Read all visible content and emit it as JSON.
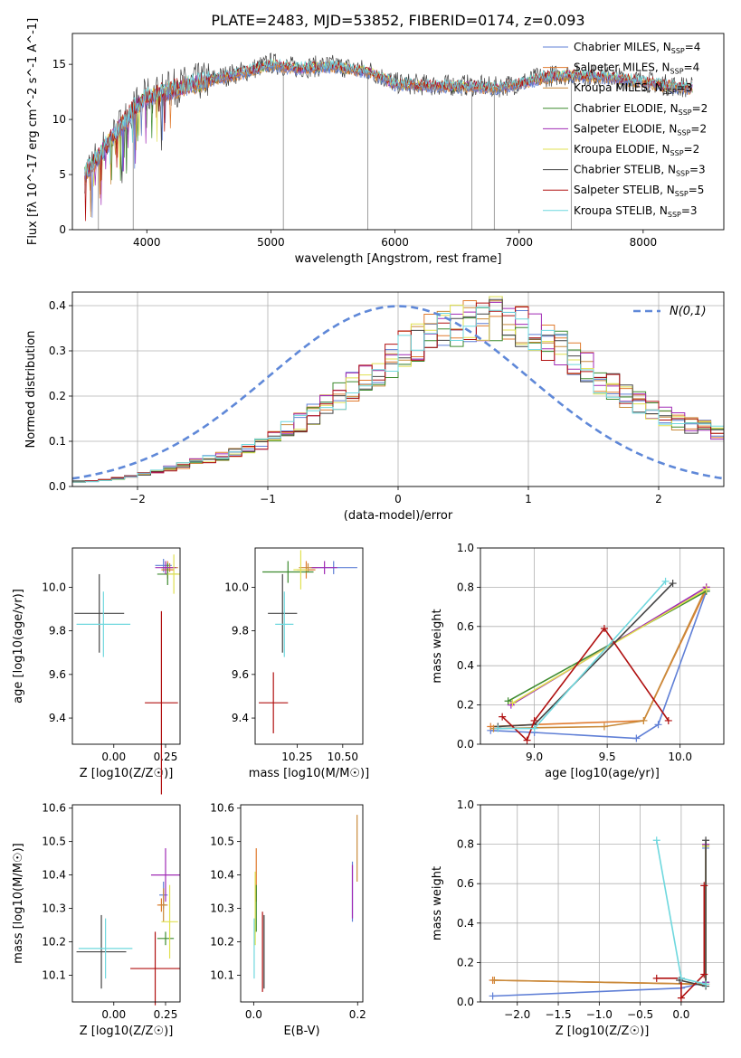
{
  "title": "PLATE=2483, MJD=53852, FIBERID=0174, z=0.093",
  "legend_labels": [
    "Chabrier MILES, N_SSP=4",
    "Salpeter MILES, N_SSP=4",
    "Kroupa MILES, N_SSP=3",
    "Chabrier ELODIE, N_SSP=2",
    "Salpeter ELODIE, N_SSP=2",
    "Kroupa ELODIE, N_SSP=2",
    "Chabrier STELIB, N_SSP=3",
    "Salpeter STELIB, N_SSP=5",
    "Kroupa STELIB, N_SSP=3"
  ],
  "series_colors": [
    "#5f7fd6",
    "#e07b2f",
    "#c98a3a",
    "#3d8b2f",
    "#a02ab5",
    "#e0e050",
    "#444444",
    "#b01010",
    "#6fd8de"
  ],
  "chart_data": [
    {
      "type": "line",
      "name": "spectrum",
      "xlabel": "wavelength [Angstrom, rest frame]",
      "ylabel": "Flux [fλ 10^-17 erg cm^-2 s^-1 A^-1]",
      "xlim": [
        3400,
        8650
      ],
      "ylim": [
        0,
        17.8
      ],
      "xticks": [
        4000,
        5000,
        6000,
        7000,
        8000
      ],
      "yticks": [
        0,
        5,
        10,
        15
      ],
      "grid": false,
      "legend": "top-right",
      "continuum": {
        "x": [
          3500,
          3700,
          3900,
          4000,
          4300,
          4500,
          4800,
          5000,
          5200,
          5500,
          5800,
          6000,
          6300,
          6600,
          6800,
          7000,
          7200,
          7400,
          7700,
          8000,
          8200,
          8400
        ],
        "y": [
          5,
          8,
          11,
          12,
          13,
          13.5,
          14.3,
          15,
          14.6,
          14.8,
          14.3,
          13.2,
          13,
          13,
          12.8,
          13.2,
          13.8,
          14,
          13.8,
          13.4,
          13,
          12.8
        ]
      }
    },
    {
      "type": "line",
      "name": "residual-distribution",
      "xlabel": "(data-model)/error",
      "ylabel": "Normed distribution",
      "xlim": [
        -2.5,
        2.5
      ],
      "ylim": [
        0,
        0.43
      ],
      "xticks": [
        -2,
        -1,
        0,
        1,
        2
      ],
      "yticks": [
        0,
        0.1,
        0.2,
        0.3,
        0.4
      ],
      "grid": true,
      "legend": "top-right",
      "reference_label": "N(0,1)",
      "reference_curve": "gaussian mean 0 sigma 1",
      "histogram_envelope": {
        "x": [
          -2.5,
          -2.2,
          -1.9,
          -1.6,
          -1.3,
          -1.0,
          -0.7,
          -0.4,
          -0.1,
          0.2,
          0.5,
          0.8,
          1.1,
          1.4,
          1.7,
          2.0,
          2.3,
          2.5
        ],
        "y": [
          0.01,
          0.015,
          0.03,
          0.05,
          0.07,
          0.1,
          0.15,
          0.21,
          0.27,
          0.33,
          0.36,
          0.37,
          0.33,
          0.27,
          0.21,
          0.16,
          0.13,
          0.12
        ]
      }
    },
    {
      "type": "scatter",
      "name": "age-vs-Z",
      "xlabel": "Z [log10(Z/Z☉)]",
      "ylabel": "age  [log10(age/yr)]",
      "xlim": [
        -0.2,
        0.32
      ],
      "ylim": [
        9.28,
        10.18
      ],
      "xticks": [
        0.0,
        0.25
      ],
      "yticks": [
        9.4,
        9.6,
        9.8,
        10.0
      ],
      "points": [
        {
          "x": 0.24,
          "y": 10.1,
          "xerr": 0.04,
          "yerr": 0.03
        },
        {
          "x": 0.26,
          "y": 10.08,
          "xerr": 0.03,
          "yerr": 0.04
        },
        {
          "x": 0.27,
          "y": 10.09,
          "xerr": 0.04,
          "yerr": 0.02
        },
        {
          "x": 0.26,
          "y": 10.06,
          "xerr": 0.05,
          "yerr": 0.05
        },
        {
          "x": 0.25,
          "y": 10.09,
          "xerr": 0.05,
          "yerr": 0.03
        },
        {
          "x": 0.29,
          "y": 10.06,
          "xerr": 0.03,
          "yerr": 0.09
        },
        {
          "x": -0.07,
          "y": 9.88,
          "xerr": 0.12,
          "yerr": 0.18
        },
        {
          "x": 0.23,
          "y": 9.47,
          "xerr": 0.08,
          "yerr": 0.42
        },
        {
          "x": -0.05,
          "y": 9.83,
          "xerr": 0.13,
          "yerr": 0.15
        }
      ]
    },
    {
      "type": "scatter",
      "name": "age-vs-mass",
      "xlabel": "mass [log10(M/M☉)]",
      "ylabel": "",
      "xlim": [
        10.02,
        10.61
      ],
      "ylim": [
        9.28,
        10.18
      ],
      "xticks": [
        10.25,
        10.5
      ],
      "yticks": [
        9.4,
        9.6,
        9.8,
        10.0
      ],
      "points": [
        {
          "x": 10.45,
          "y": 10.09,
          "xerr": 0.13,
          "yerr": 0.03
        },
        {
          "x": 10.3,
          "y": 10.08,
          "xerr": 0.05,
          "yerr": 0.04
        },
        {
          "x": 10.31,
          "y": 10.09,
          "xerr": 0.05,
          "yerr": 0.02
        },
        {
          "x": 10.2,
          "y": 10.07,
          "xerr": 0.14,
          "yerr": 0.05
        },
        {
          "x": 10.4,
          "y": 10.09,
          "xerr": 0.07,
          "yerr": 0.03
        },
        {
          "x": 10.27,
          "y": 10.08,
          "xerr": 0.04,
          "yerr": 0.09
        },
        {
          "x": 10.17,
          "y": 9.88,
          "xerr": 0.08,
          "yerr": 0.18
        },
        {
          "x": 10.12,
          "y": 9.47,
          "xerr": 0.08,
          "yerr": 0.14
        },
        {
          "x": 10.18,
          "y": 9.83,
          "xerr": 0.05,
          "yerr": 0.15
        }
      ]
    },
    {
      "type": "line",
      "name": "mass-weight-vs-age",
      "xlabel": "age  [log10(age/yr)]",
      "ylabel": "mass weight",
      "xlim": [
        8.63,
        10.3
      ],
      "ylim": [
        0,
        1
      ],
      "xticks": [
        9.0,
        9.5,
        10.0
      ],
      "yticks": [
        0,
        0.2,
        0.4,
        0.6,
        0.8,
        1.0
      ],
      "grid": true,
      "series": [
        {
          "x": [
            8.7,
            9.0,
            9.7,
            9.85,
            10.18
          ],
          "y": [
            0.07,
            0.06,
            0.03,
            0.1,
            0.78
          ]
        },
        {
          "x": [
            8.7,
            9.0,
            9.75,
            10.18
          ],
          "y": [
            0.09,
            0.1,
            0.12,
            0.79
          ]
        },
        {
          "x": [
            8.72,
            9.48,
            9.75,
            10.18
          ],
          "y": [
            0.08,
            0.09,
            0.12,
            0.8
          ]
        },
        {
          "x": [
            8.82,
            10.18
          ],
          "y": [
            0.22,
            0.78
          ]
        },
        {
          "x": [
            8.84,
            10.18
          ],
          "y": [
            0.2,
            0.8
          ]
        },
        {
          "x": [
            8.85,
            10.18
          ],
          "y": [
            0.21,
            0.79
          ]
        },
        {
          "x": [
            8.75,
            9.0,
            9.95
          ],
          "y": [
            0.09,
            0.1,
            0.82
          ]
        },
        {
          "x": [
            8.78,
            8.95,
            9.0,
            9.48,
            9.92
          ],
          "y": [
            0.14,
            0.02,
            0.12,
            0.59,
            0.12
          ]
        },
        {
          "x": [
            8.75,
            9.0,
            9.9
          ],
          "y": [
            0.08,
            0.08,
            0.83
          ]
        }
      ]
    },
    {
      "type": "scatter",
      "name": "mass-vs-Z",
      "xlabel": "Z [log10(Z/Z☉)]",
      "ylabel": "mass [log10(M/M☉)]",
      "xlim": [
        -0.2,
        0.32
      ],
      "ylim": [
        10.02,
        10.61
      ],
      "xticks": [
        0.0,
        0.25
      ],
      "yticks": [
        10.1,
        10.2,
        10.3,
        10.4,
        10.5,
        10.6
      ],
      "points": [
        {
          "x": 0.24,
          "y": 10.34,
          "xerr": 0.02,
          "yerr": 0.04
        },
        {
          "x": 0.23,
          "y": 10.31,
          "xerr": 0.02,
          "yerr": 0.02
        },
        {
          "x": 0.24,
          "y": 10.31,
          "xerr": 0.02,
          "yerr": 0.05
        },
        {
          "x": 0.25,
          "y": 10.21,
          "xerr": 0.04,
          "yerr": 0.02
        },
        {
          "x": 0.25,
          "y": 10.4,
          "xerr": 0.07,
          "yerr": 0.08
        },
        {
          "x": 0.27,
          "y": 10.26,
          "xerr": 0.04,
          "yerr": 0.11
        },
        {
          "x": -0.06,
          "y": 10.17,
          "xerr": 0.12,
          "yerr": 0.11
        },
        {
          "x": 0.2,
          "y": 10.12,
          "xerr": 0.12,
          "yerr": 0.11
        },
        {
          "x": -0.04,
          "y": 10.18,
          "xerr": 0.13,
          "yerr": 0.09
        }
      ]
    },
    {
      "type": "scatter",
      "name": "mass-vs-EBV",
      "xlabel": "E(B-V)",
      "ylabel": "",
      "xlim": [
        -0.025,
        0.21
      ],
      "ylim": [
        10.02,
        10.61
      ],
      "xticks": [
        0.0,
        0.2
      ],
      "yticks": [
        10.1,
        10.2,
        10.3,
        10.4,
        10.5,
        10.6
      ],
      "points": [
        {
          "x": 0.19,
          "y": 10.35,
          "yerr": 0.09
        },
        {
          "x": 0.005,
          "y": 10.4,
          "yerr": 0.08
        },
        {
          "x": 0.199,
          "y": 10.48,
          "yerr": 0.1
        },
        {
          "x": 0.005,
          "y": 10.3,
          "yerr": 0.07
        },
        {
          "x": 0.19,
          "y": 10.35,
          "yerr": 0.08
        },
        {
          "x": 0.003,
          "y": 10.3,
          "yerr": 0.11
        },
        {
          "x": 0.02,
          "y": 10.17,
          "yerr": 0.11
        },
        {
          "x": 0.017,
          "y": 10.17,
          "yerr": 0.12
        },
        {
          "x": 0.001,
          "y": 10.18,
          "yerr": 0.09
        }
      ]
    },
    {
      "type": "line",
      "name": "mass-weight-vs-Z",
      "xlabel": "Z [log10(Z/Z☉)]",
      "ylabel": "mass weight",
      "xlim": [
        -2.45,
        0.52
      ],
      "ylim": [
        0,
        1
      ],
      "xticks": [
        -2.0,
        -1.5,
        -1.0,
        -0.5,
        0.0
      ],
      "yticks": [
        0,
        0.2,
        0.4,
        0.6,
        0.8,
        1.0
      ],
      "grid": true,
      "series": [
        {
          "x": [
            -2.3,
            0.0,
            0.3,
            0.3
          ],
          "y": [
            0.03,
            0.07,
            0.1,
            0.78
          ]
        },
        {
          "x": [
            -2.3,
            0.3,
            0.3
          ],
          "y": [
            0.11,
            0.09,
            0.8
          ]
        },
        {
          "x": [
            -2.28,
            0.3,
            0.3
          ],
          "y": [
            0.11,
            0.09,
            0.8
          ]
        },
        {
          "x": [
            0.3,
            0.3
          ],
          "y": [
            0.1,
            0.79
          ]
        },
        {
          "x": [
            0.3,
            0.3
          ],
          "y": [
            0.1,
            0.8
          ]
        },
        {
          "x": [
            0.3,
            0.3
          ],
          "y": [
            0.09,
            0.79
          ]
        },
        {
          "x": [
            -0.02,
            0.3,
            0.3
          ],
          "y": [
            0.11,
            0.08,
            0.82
          ]
        },
        {
          "x": [
            -0.3,
            0.0,
            0.0,
            0.28,
            0.28
          ],
          "y": [
            0.12,
            0.12,
            0.02,
            0.14,
            0.59
          ]
        },
        {
          "x": [
            -0.3,
            0.0,
            0.3
          ],
          "y": [
            0.82,
            0.12,
            0.09
          ]
        }
      ]
    }
  ]
}
